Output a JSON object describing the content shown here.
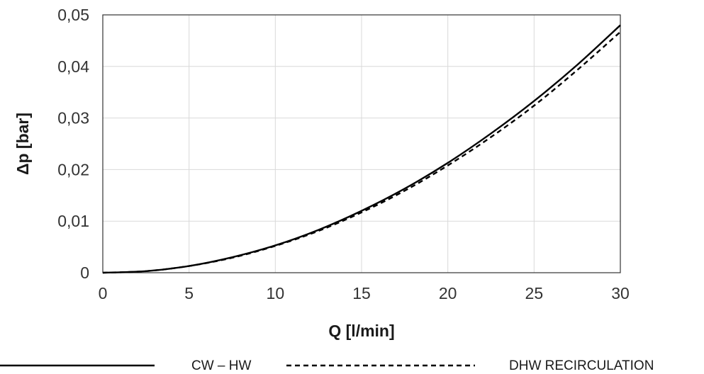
{
  "chart_data": {
    "type": "line",
    "xlabel": "Q [l/min]",
    "ylabel": "Δp [bar]",
    "xlim": [
      0,
      30
    ],
    "ylim": [
      0,
      0.05
    ],
    "x_ticks": [
      0,
      5,
      10,
      15,
      20,
      25,
      30
    ],
    "x_tick_labels": [
      "0",
      "5",
      "10",
      "15",
      "20",
      "25",
      "30"
    ],
    "y_ticks": [
      0,
      0.01,
      0.02,
      0.03,
      0.04,
      0.05
    ],
    "y_tick_labels": [
      "0",
      "0,01",
      "0,02",
      "0,03",
      "0,04",
      "0,05"
    ],
    "grid": true,
    "legend_position": "bottom",
    "x": [
      0,
      2.5,
      5,
      7.5,
      10,
      12.5,
      15,
      17.5,
      20,
      22.5,
      25,
      27.5,
      30
    ],
    "series": [
      {
        "name": "CW – HW",
        "style": "solid",
        "color": "#000000",
        "values": [
          0,
          0.0003,
          0.0013,
          0.003,
          0.0053,
          0.0083,
          0.012,
          0.0163,
          0.0213,
          0.027,
          0.0333,
          0.0403,
          0.048
        ]
      },
      {
        "name": "DHW RECIRCULATION",
        "style": "dashed",
        "color": "#000000",
        "values": [
          0,
          0.0003,
          0.0013,
          0.0029,
          0.0052,
          0.0081,
          0.0117,
          0.0159,
          0.0208,
          0.0263,
          0.0324,
          0.0393,
          0.0467
        ]
      }
    ]
  }
}
